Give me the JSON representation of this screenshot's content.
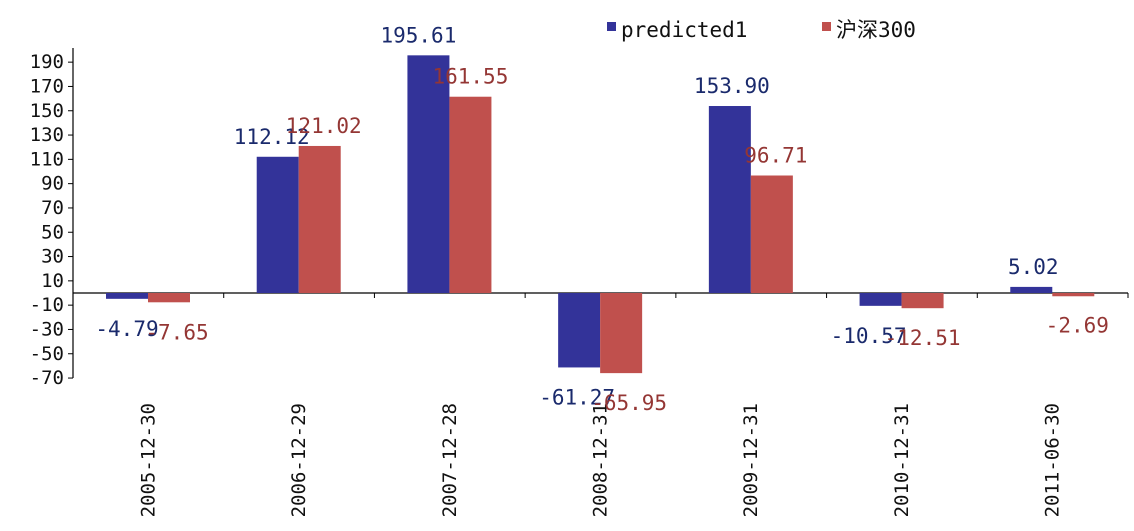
{
  "chart_data": {
    "type": "bar",
    "title": "",
    "xlabel": "",
    "ylabel": "",
    "categories": [
      "2005-12-30",
      "2006-12-29",
      "2007-12-28",
      "2008-12-31",
      "2009-12-31",
      "2010-12-31",
      "2011-06-30"
    ],
    "series": [
      {
        "name": "predicted1",
        "color": "#333399",
        "label_color": "#1a2a6c",
        "values": [
          -4.79,
          112.12,
          195.61,
          -61.27,
          153.9,
          -10.57,
          5.02
        ],
        "labels": [
          "-4.79",
          "112.12",
          "195.61",
          "-61.27",
          "153.90",
          "-10.57",
          "5.02"
        ]
      },
      {
        "name": "沪深300",
        "color": "#C0504D",
        "label_color": "#943634",
        "values": [
          -7.65,
          121.02,
          161.55,
          -65.95,
          96.71,
          -12.51,
          -2.69
        ],
        "labels": [
          "-7.65",
          "121.02",
          "161.55",
          "-65.95",
          "96.71",
          "-12.51",
          "-2.69"
        ]
      }
    ],
    "yticks": [
      190,
      170,
      150,
      130,
      110,
      90,
      70,
      50,
      30,
      10,
      -10,
      -30,
      -50,
      -70
    ],
    "ylim": [
      -70,
      200
    ],
    "grid": false,
    "legend_position": "top-right"
  }
}
